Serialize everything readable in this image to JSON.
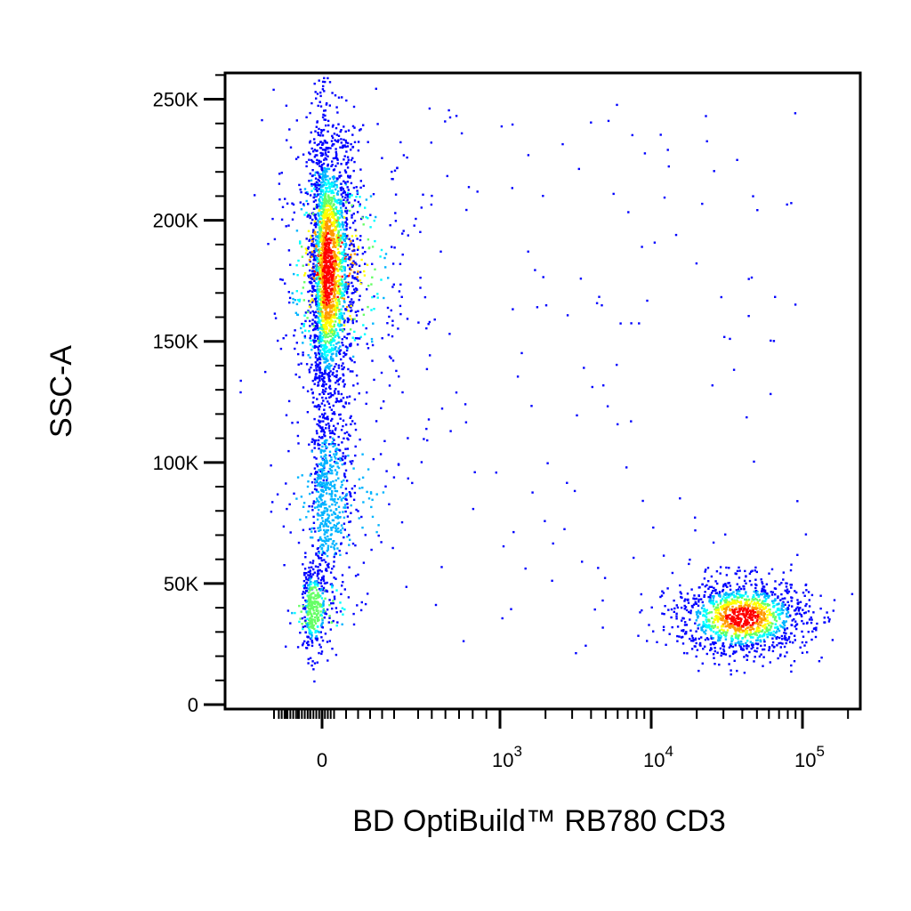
{
  "chart_data": {
    "type": "scatter",
    "style": "flow-cytometry-density-dot-plot",
    "xlabel": "BD OptiBuild™ RB780 CD3",
    "ylabel": "SSC-A",
    "x_scale": "biexponential",
    "x_range": [
      -200,
      200000
    ],
    "x_ticks": [
      {
        "value": 0,
        "label": "0"
      },
      {
        "value": 1000,
        "base": "10",
        "exp": "3"
      },
      {
        "value": 10000,
        "base": "10",
        "exp": "4"
      },
      {
        "value": 100000,
        "base": "10",
        "exp": "5"
      }
    ],
    "y_scale": "linear",
    "y_range": [
      0,
      262144
    ],
    "y_ticks": [
      {
        "value": 0,
        "label": "0"
      },
      {
        "value": 50000,
        "label": "50K"
      },
      {
        "value": 100000,
        "label": "100K"
      },
      {
        "value": 150000,
        "label": "150K"
      },
      {
        "value": 200000,
        "label": "200K"
      },
      {
        "value": 250000,
        "label": "250K"
      }
    ],
    "grid": false,
    "legend": "none",
    "density_colors": [
      "#0000ff",
      "#00b4ff",
      "#00ffff",
      "#66ff66",
      "#ffff00",
      "#ff9900",
      "#ff0000"
    ],
    "populations": [
      {
        "name": "CD3-negative high SSC",
        "x_center": 20,
        "x_spread": 60,
        "y_center": 180000,
        "y_spread": 30000,
        "share": 0.55
      },
      {
        "name": "CD3-negative mid SSC",
        "x_center": 20,
        "x_spread": 55,
        "y_center": 85000,
        "y_spread": 18000,
        "share": 0.12
      },
      {
        "name": "CD3-negative low SSC",
        "x_center": -40,
        "x_spread": 35,
        "y_center": 40000,
        "y_spread": 9000,
        "share": 0.08
      },
      {
        "name": "CD3-positive",
        "x_center": 40000,
        "x_spread_log10": 0.22,
        "y_center": 36000,
        "y_spread": 8000,
        "share": 0.25
      }
    ]
  }
}
